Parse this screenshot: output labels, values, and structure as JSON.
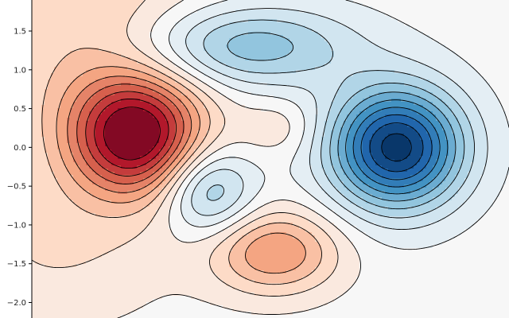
{
  "chart_data": {
    "type": "contour",
    "title": "",
    "xlabel": "",
    "ylabel": "",
    "ylim": [
      -2.2,
      1.9
    ],
    "xlim": [
      -2.45,
      2.85
    ],
    "y_ticks": [
      {
        "value": 1.5,
        "label": "1.5"
      },
      {
        "value": 1.0,
        "label": "1.0"
      },
      {
        "value": 0.5,
        "label": "0.5"
      },
      {
        "value": 0.0,
        "label": "0.0"
      },
      {
        "value": -0.5,
        "label": "−0.5"
      },
      {
        "value": -1.0,
        "label": "−1.0"
      },
      {
        "value": -1.5,
        "label": "−1.5"
      },
      {
        "value": -2.0,
        "label": "−2.0"
      }
    ],
    "colormap": "RdBu_r",
    "color_range": [
      -1.0,
      1.0
    ],
    "contour_levels": [
      -0.95,
      -0.85,
      -0.75,
      -0.65,
      -0.55,
      -0.45,
      -0.35,
      -0.25,
      -0.15,
      -0.05,
      0.05,
      0.15,
      0.25,
      0.35,
      0.45,
      0.55,
      0.65,
      0.75,
      0.85
    ],
    "field_components": [
      {
        "sign": "positive",
        "amplitude": 0.9,
        "x": -1.3,
        "y": 0.15,
        "sx": 0.52,
        "sy": 0.55
      },
      {
        "sign": "negative",
        "amplitude": 1.0,
        "x": 1.6,
        "y": 0.0,
        "sx": 0.52,
        "sy": 0.55
      },
      {
        "sign": "negative",
        "amplitude": 0.45,
        "x": -0.1,
        "y": 1.3,
        "sx": 0.85,
        "sy": 0.38
      },
      {
        "sign": "negative",
        "amplitude": 0.42,
        "x": -0.5,
        "y": -0.55,
        "sx": 0.36,
        "sy": 0.4
      },
      {
        "sign": "positive",
        "amplitude": 0.45,
        "x": 0.25,
        "y": -1.35,
        "sx": 0.5,
        "sy": 0.38
      },
      {
        "sign": "positive",
        "amplitude": 0.25,
        "x": -1.8,
        "y": 1.6,
        "sx": 1.0,
        "sy": 1.2
      },
      {
        "sign": "positive",
        "amplitude": 0.15,
        "x": -2.2,
        "y": -1.3,
        "sx": 0.9,
        "sy": 0.7
      },
      {
        "sign": "positive",
        "amplitude": 0.12,
        "x": 0.3,
        "y": 0.25,
        "sx": 0.3,
        "sy": 0.25
      }
    ]
  }
}
